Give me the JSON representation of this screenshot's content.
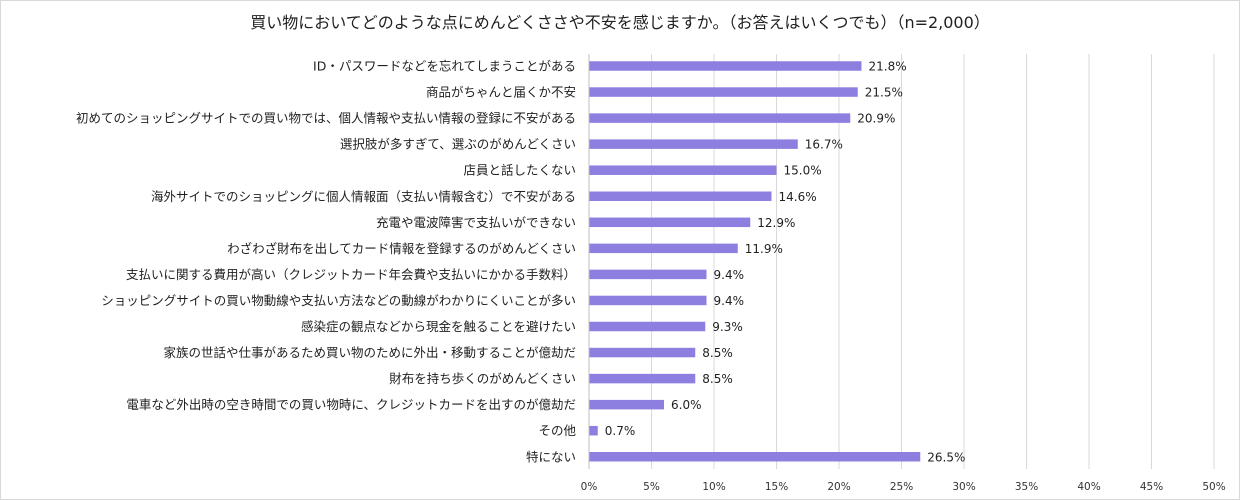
{
  "chart_data": {
    "type": "bar",
    "orientation": "horizontal",
    "title": "買い物においてどのような点にめんどくささや不安を感じますか。（お答えはいくつでも）（n=2,000）",
    "xlabel": "",
    "ylabel": "",
    "xlim": [
      0,
      50
    ],
    "ticks": [
      "0%",
      "5%",
      "10%",
      "15%",
      "20%",
      "25%",
      "30%",
      "35%",
      "40%",
      "45%",
      "50%"
    ],
    "tick_values": [
      0,
      5,
      10,
      15,
      20,
      25,
      30,
      35,
      40,
      45,
      50
    ],
    "grid": true,
    "bar_color": "#8d7fe0",
    "categories": [
      "ID・パスワードなどを忘れてしまうことがある",
      "商品がちゃんと届くか不安",
      "初めてのショッピングサイトでの買い物では、個人情報や支払い情報の登録に不安がある",
      "選択肢が多すぎて、選ぶのがめんどくさい",
      "店員と話したくない",
      "海外サイトでのショッピングに個人情報面（支払い情報含む）で不安がある",
      "充電や電波障害で支払いができない",
      "わざわざ財布を出してカード情報を登録するのがめんどくさい",
      "支払いに関する費用が高い（クレジットカード年会費や支払いにかかる手数料）",
      "ショッピングサイトの買い物動線や支払い方法などの動線がわかりにくいことが多い",
      "感染症の観点などから現金を触ることを避けたい",
      "家族の世話や仕事があるため買い物のために外出・移動することが億劫だ",
      "財布を持ち歩くのがめんどくさい",
      "電車など外出時の空き時間での買い物時に、クレジットカードを出すのが億劫だ",
      "その他",
      "特にない"
    ],
    "values": [
      21.8,
      21.5,
      20.9,
      16.7,
      15.0,
      14.6,
      12.9,
      11.9,
      9.4,
      9.4,
      9.3,
      8.5,
      8.5,
      6.0,
      0.7,
      26.5
    ],
    "value_labels": [
      "21.8%",
      "21.5%",
      "20.9%",
      "16.7%",
      "15.0%",
      "14.6%",
      "12.9%",
      "11.9%",
      "9.4%",
      "9.4%",
      "9.3%",
      "8.5%",
      "8.5%",
      "6.0%",
      "0.7%",
      "26.5%"
    ]
  }
}
